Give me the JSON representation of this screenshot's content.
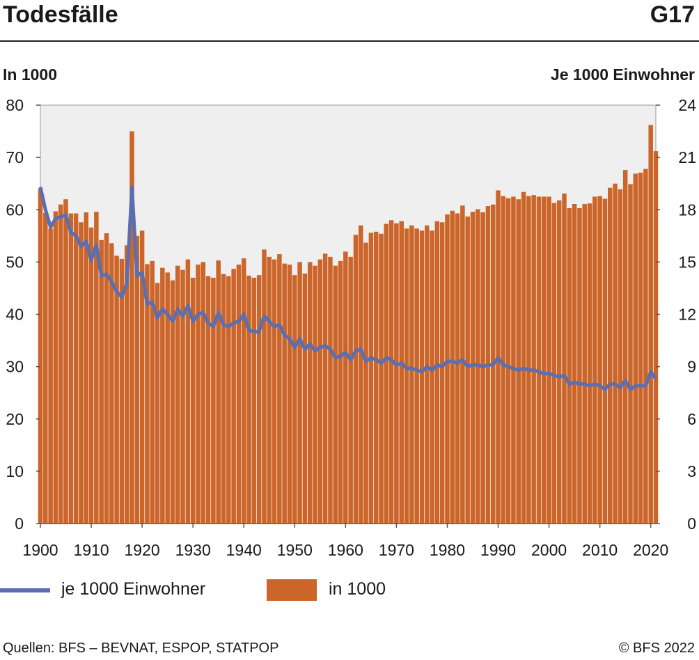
{
  "header": {
    "title": "Todesfälle",
    "code": "G17"
  },
  "footer": {
    "source": "Quellen: BFS – BEVNAT, ESPOP, STATPOP",
    "copyright": "© BFS 2022"
  },
  "colors": {
    "bars": "#cc6529",
    "line": "#5b6fb0",
    "plot_bg": "#efefef"
  },
  "chart_data": {
    "type": "bar",
    "title": "Todesfälle",
    "ylabel_left": "In 1000",
    "ylabel_right": "Je 1000 Einwohner",
    "ylim_left": [
      0,
      80
    ],
    "ylim_right": [
      0,
      24
    ],
    "yticks_left": [
      "0",
      "10",
      "20",
      "30",
      "40",
      "50",
      "60",
      "70",
      "80"
    ],
    "yticks_right": [
      "0",
      "3",
      "6",
      "9",
      "12",
      "15",
      "18",
      "21",
      "24"
    ],
    "xlim": [
      1900,
      2021
    ],
    "xticks": [
      "1900",
      "1910",
      "1920",
      "1930",
      "1940",
      "1950",
      "1960",
      "1970",
      "1980",
      "1990",
      "2000",
      "2010",
      "2020"
    ],
    "legend": {
      "line": "je 1000 Einwohner",
      "bars": "in 1000"
    },
    "legend_placement": "bottom",
    "grid": false,
    "years_start": 1900,
    "series": [
      {
        "name": "in 1000",
        "type": "bar",
        "axis": "left",
        "values": [
          64.0,
          59.4,
          56.4,
          59.7,
          61.0,
          62.0,
          59.3,
          59.3,
          57.6,
          59.5,
          56.6,
          59.6,
          54.2,
          55.5,
          53.6,
          51.2,
          50.6,
          53.2,
          75.0,
          55.0,
          56.0,
          49.6,
          50.2,
          46.0,
          48.9,
          48.0,
          46.5,
          49.3,
          48.5,
          50.5,
          47.0,
          49.5,
          50.0,
          47.3,
          47.0,
          50.3,
          47.7,
          47.3,
          48.7,
          49.5,
          50.7,
          47.4,
          47.0,
          47.5,
          52.4,
          51.0,
          50.5,
          51.5,
          49.7,
          49.5,
          47.5,
          50.0,
          47.8,
          50.0,
          49.3,
          50.5,
          51.6,
          51.0,
          49.3,
          50.2,
          52.0,
          51.0,
          55.2,
          57.0,
          53.7,
          55.6,
          55.8,
          55.4,
          57.3,
          58.0,
          57.4,
          57.8,
          56.4,
          57.0,
          56.4,
          56.0,
          57.0,
          56.0,
          57.8,
          57.6,
          59.1,
          59.8,
          59.3,
          60.8,
          58.7,
          59.6,
          60.1,
          59.5,
          60.7,
          61.0,
          63.7,
          62.6,
          62.2,
          62.5,
          62.0,
          63.4,
          62.6,
          62.8,
          62.5,
          62.5,
          62.5,
          61.3,
          61.8,
          63.1,
          60.3,
          61.1,
          60.3,
          61.1,
          61.2,
          62.5,
          62.6,
          62.1,
          64.2,
          65.0,
          63.9,
          67.6,
          64.9,
          66.9,
          67.1,
          67.8,
          76.2,
          71.2
        ]
      },
      {
        "name": "je 1000 Einwohner",
        "type": "line",
        "axis": "right",
        "values": [
          19.3,
          18.0,
          17.0,
          17.5,
          17.6,
          17.7,
          16.7,
          16.5,
          15.9,
          16.2,
          15.1,
          16.0,
          14.2,
          14.3,
          13.9,
          13.3,
          13.0,
          13.8,
          19.3,
          14.2,
          14.4,
          12.6,
          12.7,
          11.8,
          12.3,
          12.0,
          11.6,
          12.3,
          11.9,
          12.5,
          11.6,
          12.0,
          12.1,
          11.5,
          11.3,
          12.1,
          11.4,
          11.3,
          11.5,
          11.6,
          12.0,
          11.1,
          11.0,
          11.0,
          11.9,
          11.6,
          11.3,
          11.4,
          10.8,
          10.6,
          10.1,
          10.6,
          10.0,
          10.3,
          9.9,
          10.1,
          10.2,
          10.0,
          9.5,
          9.6,
          9.8,
          9.4,
          9.9,
          10.0,
          9.3,
          9.5,
          9.4,
          9.2,
          9.5,
          9.4,
          9.1,
          9.2,
          8.9,
          8.9,
          8.8,
          8.7,
          9.0,
          8.8,
          9.1,
          9.0,
          9.3,
          9.3,
          9.2,
          9.4,
          9.0,
          9.1,
          9.1,
          9.0,
          9.1,
          9.1,
          9.5,
          9.1,
          9.0,
          8.9,
          8.8,
          8.9,
          8.8,
          8.8,
          8.7,
          8.6,
          8.6,
          8.5,
          8.4,
          8.5,
          8.0,
          8.1,
          8.0,
          8.0,
          7.9,
          8.0,
          7.9,
          7.7,
          8.0,
          8.0,
          7.8,
          8.2,
          7.7,
          7.9,
          7.9,
          7.9,
          8.7,
          8.3
        ]
      }
    ]
  }
}
